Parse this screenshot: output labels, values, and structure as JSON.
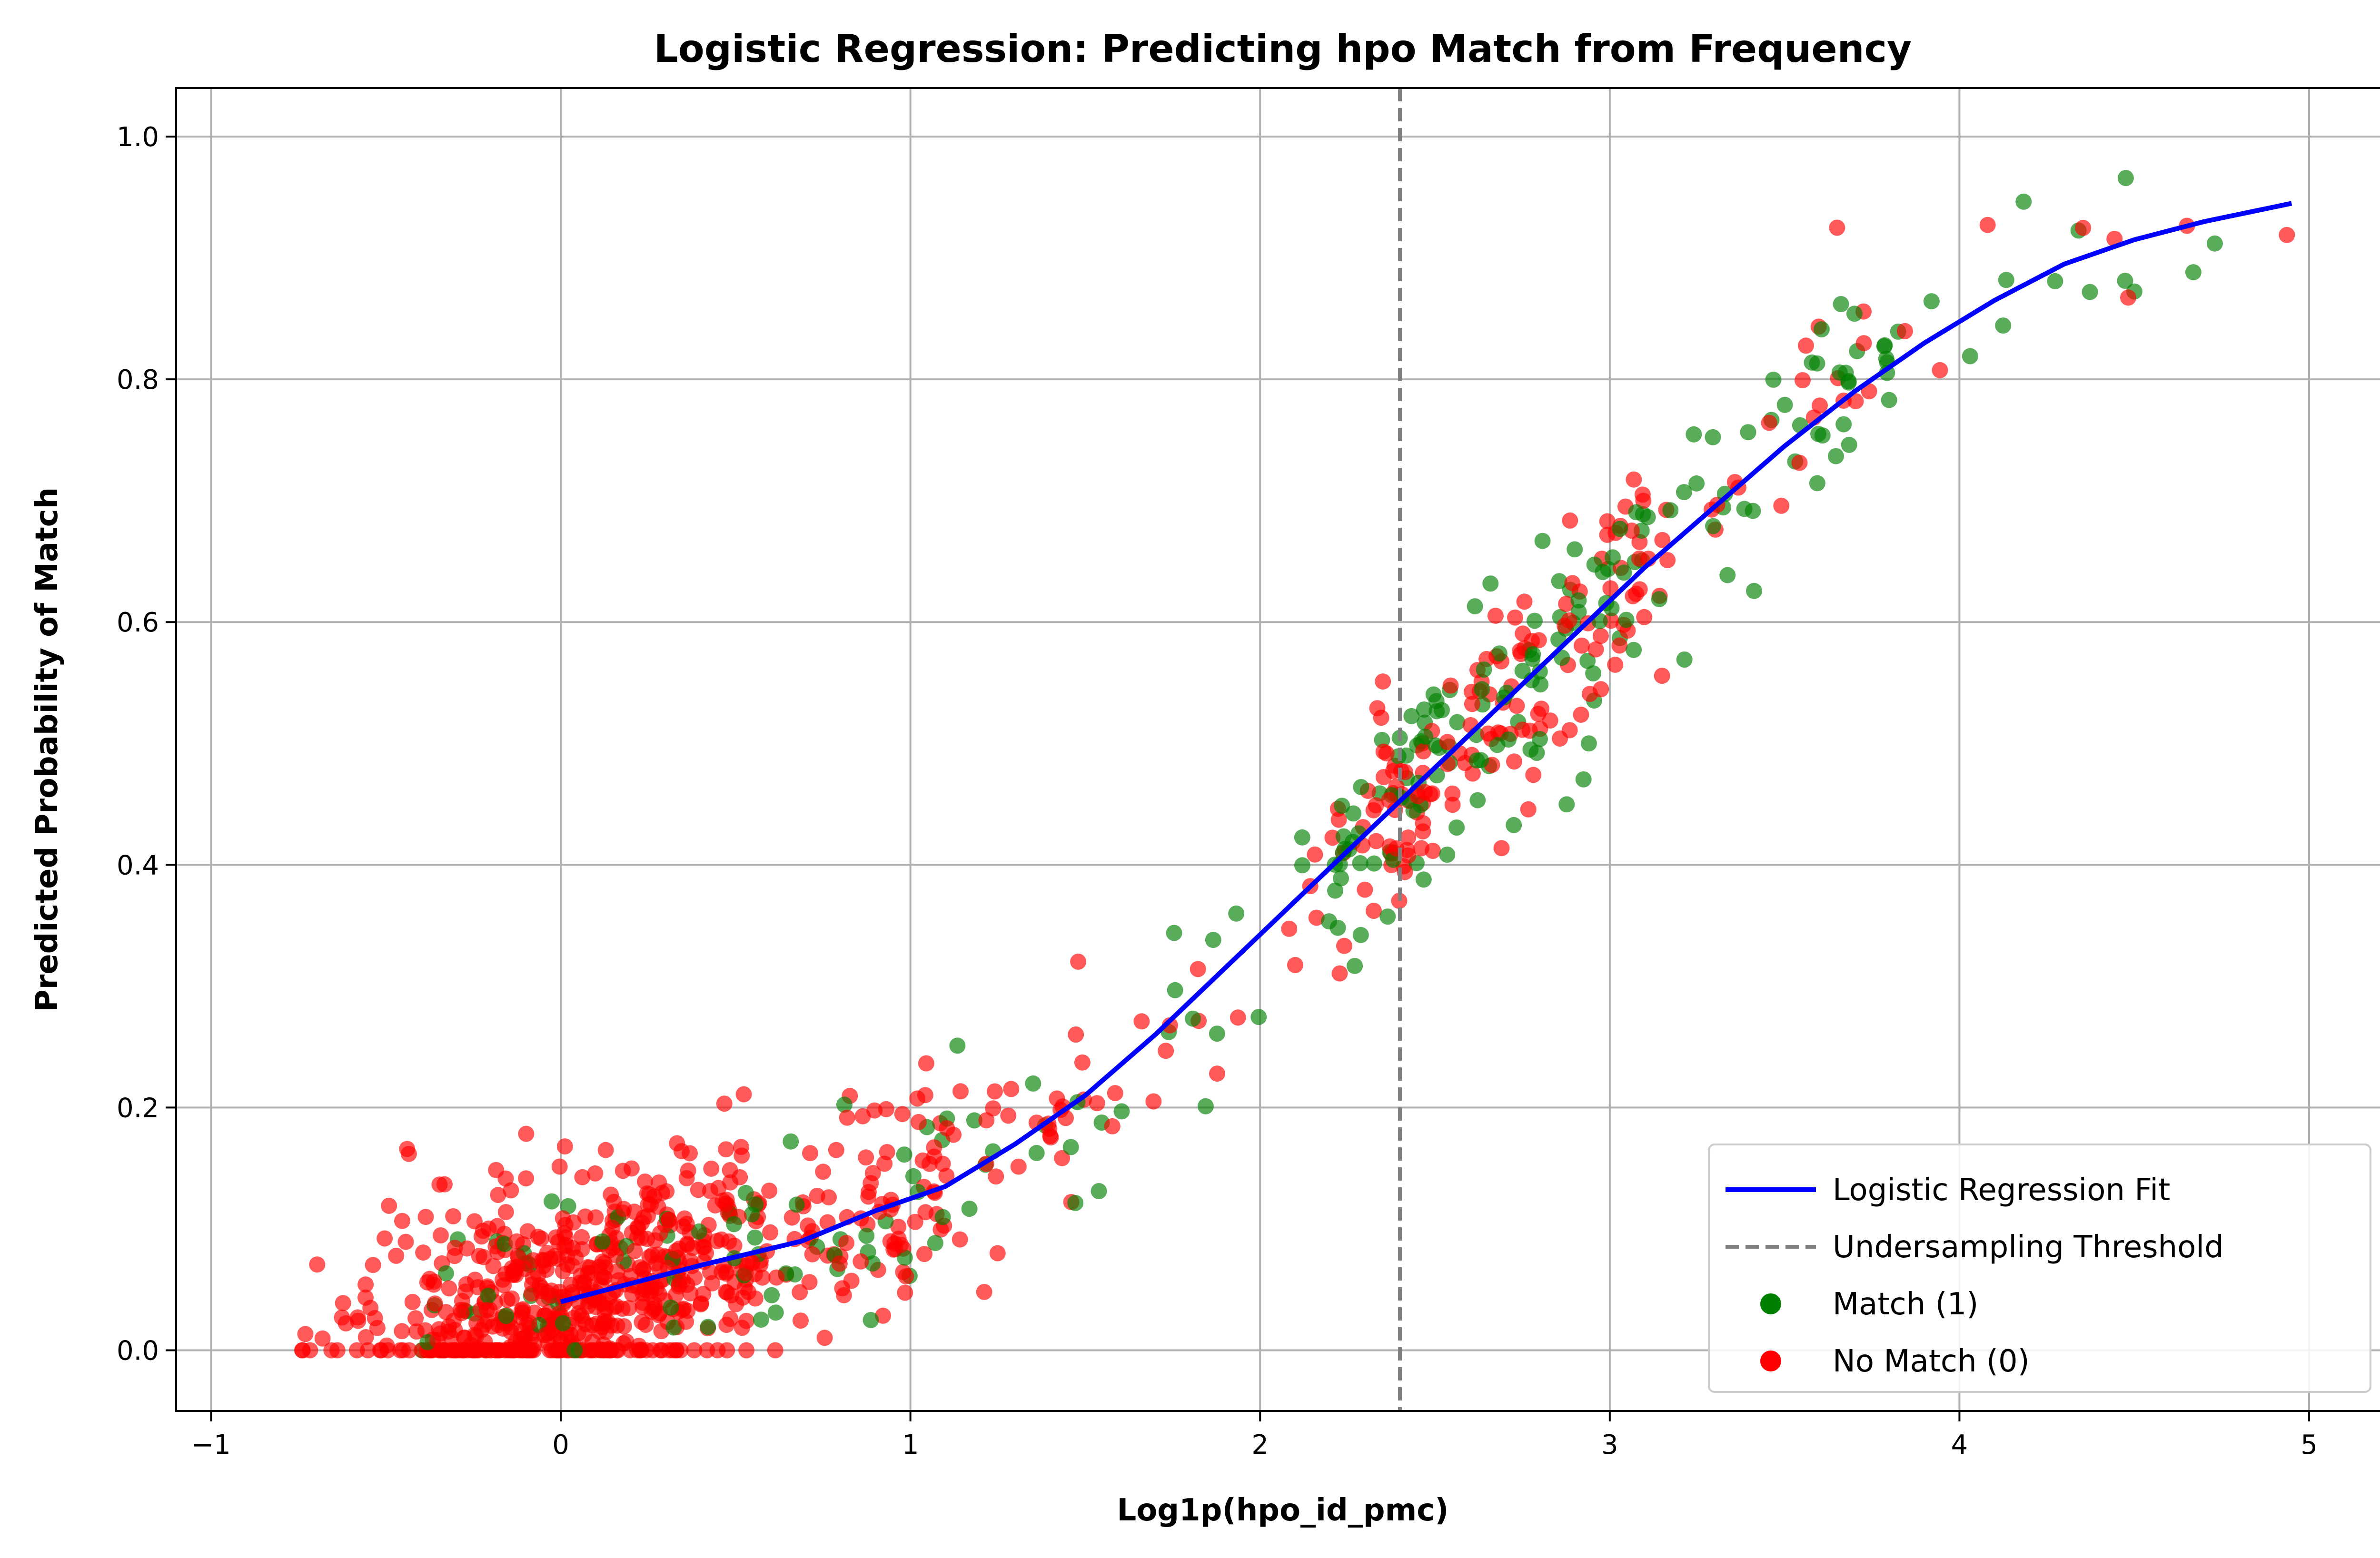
{
  "chart_data": {
    "type": "scatter",
    "title": "Logistic Regression: Predicting hpo Match from Frequency",
    "xlabel": "Log1p(hpo_id_pmc)",
    "ylabel": "Predicted Probability of Match",
    "xlim": [
      -1.1,
      5.23
    ],
    "ylim": [
      -0.05,
      1.04
    ],
    "xticks": [
      -1,
      0,
      1,
      2,
      3,
      4,
      5
    ],
    "yticks": [
      0.0,
      0.2,
      0.4,
      0.6,
      0.8,
      1.0
    ],
    "xtick_labels": [
      "−1",
      "0",
      "1",
      "2",
      "3",
      "4",
      "5"
    ],
    "ytick_labels": [
      "0.0",
      "0.2",
      "0.4",
      "0.6",
      "0.8",
      "1.0"
    ],
    "grid": true,
    "legend_position": "lower-right",
    "threshold": {
      "name": "Undersampling Threshold",
      "x": 2.4,
      "color": "#808080"
    },
    "fit": {
      "name": "Logistic Regression Fit",
      "color": "#0000ff",
      "x": [
        0,
        0.2,
        0.4,
        0.69,
        0.9,
        1.1,
        1.3,
        1.5,
        1.7,
        1.9,
        2.1,
        2.3,
        2.5,
        2.7,
        2.9,
        3.1,
        3.3,
        3.5,
        3.7,
        3.9,
        4.1,
        4.3,
        4.5,
        4.7,
        4.95
      ],
      "y": [
        0.04,
        0.055,
        0.07,
        0.09,
        0.115,
        0.135,
        0.17,
        0.21,
        0.26,
        0.315,
        0.37,
        0.425,
        0.48,
        0.535,
        0.59,
        0.645,
        0.695,
        0.745,
        0.79,
        0.83,
        0.865,
        0.895,
        0.915,
        0.93,
        0.945
      ]
    },
    "series": [
      {
        "name": "Match (1)",
        "color": "#008000"
      },
      {
        "name": "No Match (0)",
        "color": "#ff0000"
      }
    ],
    "seed": 42
  }
}
